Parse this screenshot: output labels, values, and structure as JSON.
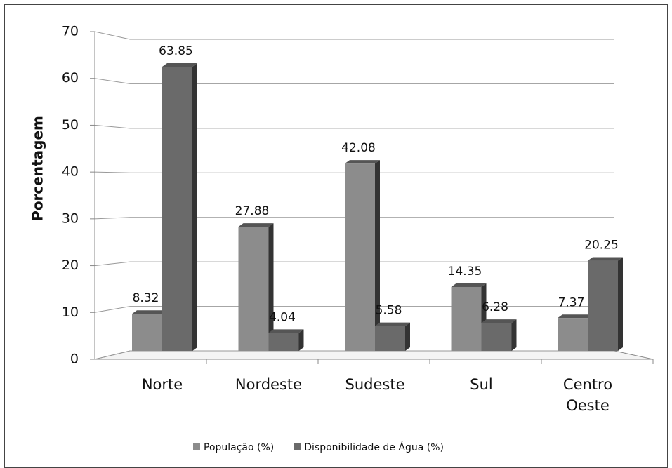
{
  "chart_data": {
    "type": "bar",
    "categories": [
      "Norte",
      "Nordeste",
      "Sudeste",
      "Sul",
      "Centro Oeste"
    ],
    "series": [
      {
        "name": "População (%)",
        "color": "#8c8c8c",
        "values": [
          8.32,
          27.88,
          42.08,
          14.35,
          7.37
        ]
      },
      {
        "name": "Disponibilidade de Água (%)",
        "color": "#6a6a6a",
        "values": [
          63.85,
          4.04,
          5.58,
          6.28,
          20.25
        ]
      }
    ],
    "y_label": "Porcentagem",
    "ylim": [
      0,
      70
    ],
    "yticks": [
      0,
      10,
      20,
      30,
      40,
      50,
      60,
      70
    ],
    "grid": true,
    "legend": "bottom"
  }
}
